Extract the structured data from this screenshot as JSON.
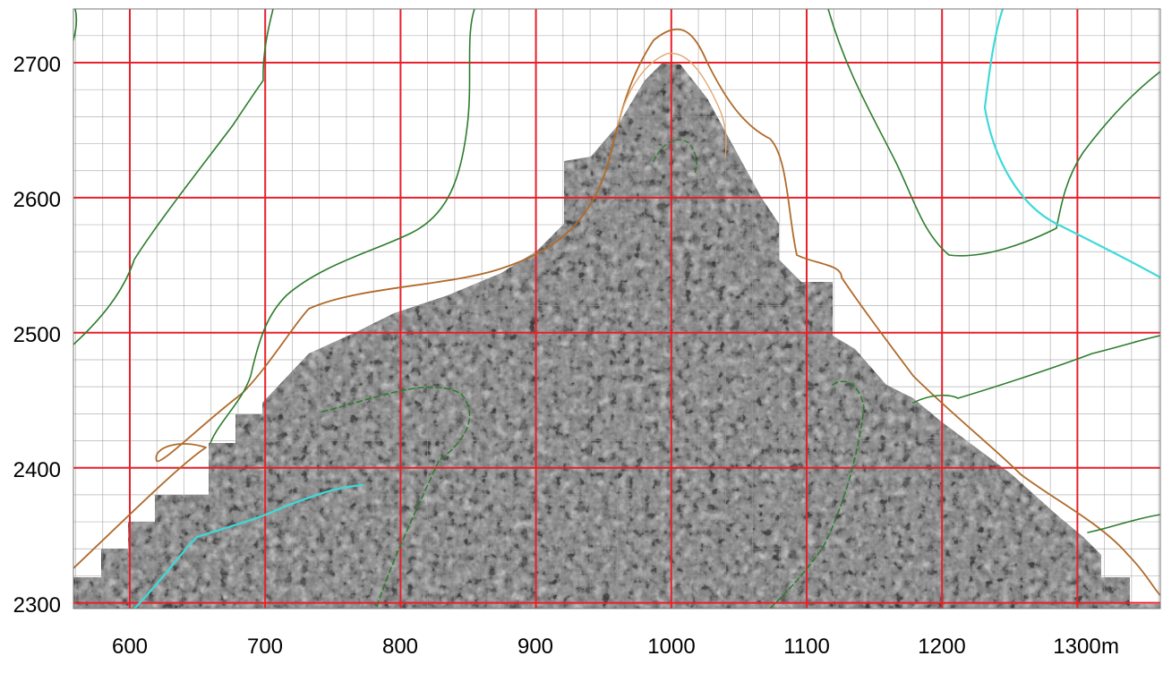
{
  "map": {
    "x_axis": {
      "ticks": [
        "600",
        "700",
        "800",
        "900",
        "1000",
        "1100",
        "1200",
        "1300"
      ],
      "unit": "m"
    },
    "y_axis": {
      "ticks": [
        "2700",
        "2600",
        "2500",
        "2400",
        "2300"
      ]
    },
    "colors": {
      "major_grid": "#e8202a",
      "minor_grid": "#9a9a9a",
      "survey_boundary": "#b06a2a",
      "inner_boundary": "#e3a46a",
      "contour_line": "#2e7d2e",
      "stream": "#3fd9d9",
      "survey_fill": "#7a7a7a"
    }
  }
}
